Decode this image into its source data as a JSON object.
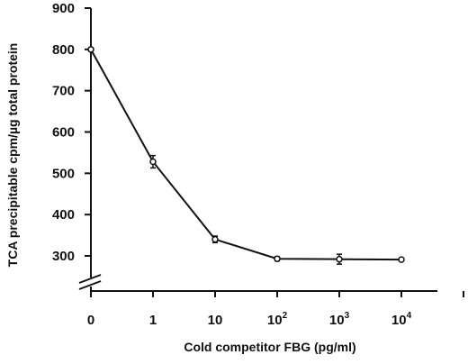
{
  "chart_data": {
    "type": "line",
    "title": "",
    "xlabel": "Cold competitor FBG (pg/ml)",
    "ylabel": "TCA precipitable cpm/µg total protein",
    "x_categories": [
      {
        "base": "0",
        "exp": ""
      },
      {
        "base": "1",
        "exp": ""
      },
      {
        "base": "10",
        "exp": ""
      },
      {
        "base": "10",
        "exp": "2"
      },
      {
        "base": "10",
        "exp": "3"
      },
      {
        "base": "10",
        "exp": "4"
      }
    ],
    "y_ticks": [
      300,
      400,
      500,
      600,
      700,
      800,
      900
    ],
    "ylim": [
      300,
      900
    ],
    "y_axis_break": true,
    "series": [
      {
        "values": [
          800,
          528,
          340,
          293,
          292,
          291
        ],
        "errors": [
          0,
          15,
          8,
          5,
          12,
          0
        ],
        "color": "#111111",
        "marker": "open-circle"
      }
    ],
    "grid": false,
    "legend": "none"
  }
}
